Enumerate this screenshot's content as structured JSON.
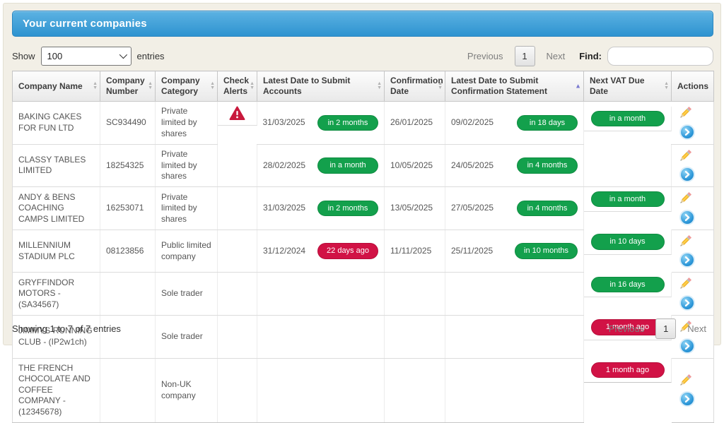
{
  "panel": {
    "title": "Your current companies"
  },
  "controls": {
    "show_label": "Show",
    "entries_value": "100",
    "entries_label": "entries",
    "find_label": "Find:",
    "find_value": ""
  },
  "pagination": {
    "previous_label": "Previous",
    "page_number": "1",
    "next_label": "Next"
  },
  "footer": {
    "summary": "Showing 1 to 7 of 7 entries"
  },
  "icons": {
    "alert": "warning-triangle-icon",
    "edit": "pencil-icon",
    "view": "chevron-circle-icon",
    "sort": "sort-arrows-icon"
  },
  "colors": {
    "header_blue_top": "#5cb2e2",
    "header_blue_bottom": "#2e93d0",
    "badge_green": "#13a04c",
    "badge_red": "#d11245",
    "alert_red": "#c8193c",
    "sorted_arrow": "#7a7ad0"
  },
  "table": {
    "columns": [
      {
        "label": "Company Name",
        "sort": "both"
      },
      {
        "label": "Company Number",
        "sort": "both"
      },
      {
        "label": "Company Category",
        "sort": "both"
      },
      {
        "label": "Check Alerts",
        "sort": "both"
      },
      {
        "label": "Latest Date to Submit Accounts",
        "sort": "both"
      },
      {
        "label": "Confirmation Date",
        "sort": "both"
      },
      {
        "label": "Latest Date to Submit Confirmation Statement",
        "sort": "asc"
      },
      {
        "label": "Next VAT Due Date",
        "sort": "both"
      },
      {
        "label": "Actions",
        "sort": "none"
      }
    ],
    "rows": [
      {
        "name": "BAKING CAKES FOR FUN LTD",
        "number": "SC934490",
        "category": "Private limited by shares",
        "alert": true,
        "accounts_date": "31/03/2025",
        "accounts_badge": {
          "text": "in 2 months",
          "tone": "green"
        },
        "confirmation_date": "26/01/2025",
        "statement_date": "09/02/2025",
        "statement_badge": {
          "text": "in 18 days",
          "tone": "green"
        },
        "vat_badge": {
          "text": "in a month",
          "tone": "green"
        }
      },
      {
        "name": "CLASSY TABLES LIMITED",
        "number": "18254325",
        "category": "Private limited by shares",
        "alert": false,
        "accounts_date": "28/02/2025",
        "accounts_badge": {
          "text": "in a month",
          "tone": "green"
        },
        "confirmation_date": "10/05/2025",
        "statement_date": "24/05/2025",
        "statement_badge": {
          "text": "in 4 months",
          "tone": "green"
        },
        "vat_badge": null
      },
      {
        "name": "ANDY & BENS COACHING CAMPS LIMITED",
        "number": "16253071",
        "category": "Private limited by shares",
        "alert": false,
        "accounts_date": "31/03/2025",
        "accounts_badge": {
          "text": "in 2 months",
          "tone": "green"
        },
        "confirmation_date": "13/05/2025",
        "statement_date": "27/05/2025",
        "statement_badge": {
          "text": "in 4 months",
          "tone": "green"
        },
        "vat_badge": {
          "text": "in a month",
          "tone": "green"
        }
      },
      {
        "name": "MILLENNIUM STADIUM PLC",
        "number": "08123856",
        "category": "Public limited company",
        "alert": false,
        "accounts_date": "31/12/2024",
        "accounts_badge": {
          "text": "22 days ago",
          "tone": "red"
        },
        "confirmation_date": "11/11/2025",
        "statement_date": "25/11/2025",
        "statement_badge": {
          "text": "in 10 months",
          "tone": "green"
        },
        "vat_badge": {
          "text": "in 10 days",
          "tone": "green"
        }
      },
      {
        "name": "GRYFFINDOR MOTORS - (SA34567)",
        "number": "",
        "category": "Sole trader",
        "alert": false,
        "accounts_date": "",
        "accounts_badge": null,
        "confirmation_date": "",
        "statement_date": "",
        "statement_badge": null,
        "vat_badge": {
          "text": "in 16 days",
          "tone": "green"
        }
      },
      {
        "name": "JIMMYS RUNNING CLUB - (IP2w1ch)",
        "number": "",
        "category": "Sole trader",
        "alert": false,
        "accounts_date": "",
        "accounts_badge": null,
        "confirmation_date": "",
        "statement_date": "",
        "statement_badge": null,
        "vat_badge": {
          "text": "1 month ago",
          "tone": "red"
        }
      },
      {
        "name": "THE FRENCH CHOCOLATE AND COFFEE COMPANY - (12345678)",
        "number": "",
        "category": "Non-UK company",
        "alert": false,
        "accounts_date": "",
        "accounts_badge": null,
        "confirmation_date": "",
        "statement_date": "",
        "statement_badge": null,
        "vat_badge": {
          "text": "1 month ago",
          "tone": "red"
        }
      }
    ]
  }
}
